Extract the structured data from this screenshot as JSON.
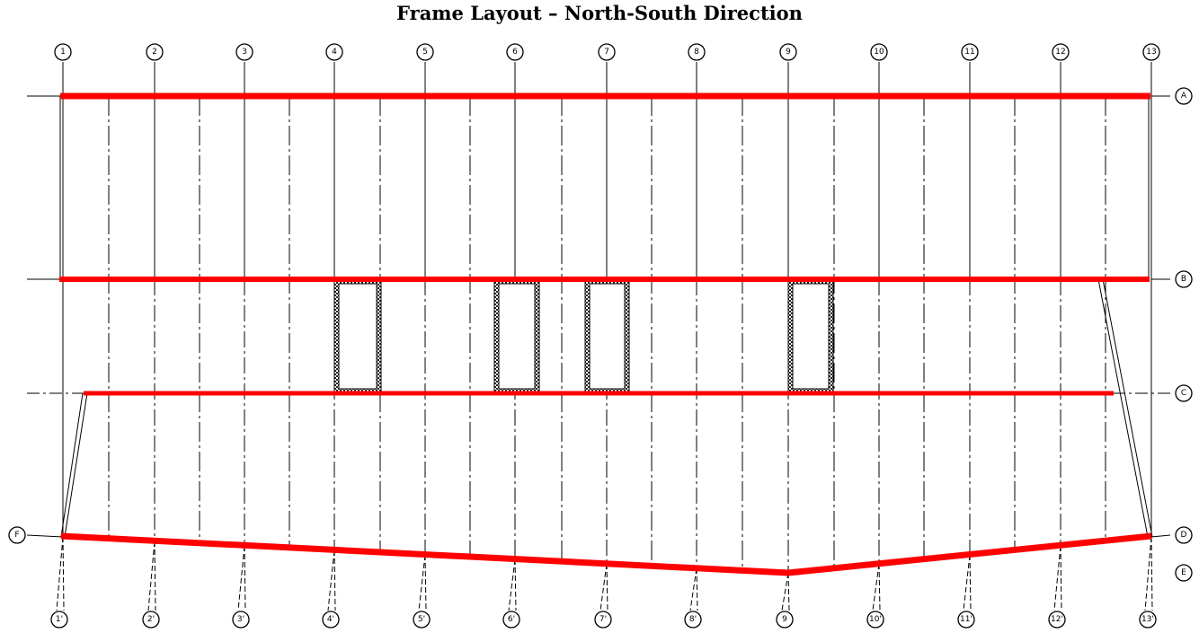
{
  "title": "Frame Layout – North-South Direction",
  "colors": {
    "frame": "#ff0000",
    "line": "#000000",
    "background": "#ffffff"
  },
  "top_grid_labels": [
    "1",
    "2",
    "3",
    "4",
    "5",
    "6",
    "7",
    "8",
    "9",
    "10",
    "11",
    "12",
    "13"
  ],
  "bottom_grid_labels": [
    "1'",
    "2'",
    "3'",
    "4'",
    "5'",
    "6'",
    "7'",
    "8'",
    "9",
    "10'",
    "11'",
    "12'",
    "13'"
  ],
  "right_grid_labels": [
    "A",
    "B",
    "C",
    "D",
    "E"
  ],
  "left_grid_labels": [
    "F"
  ]
}
